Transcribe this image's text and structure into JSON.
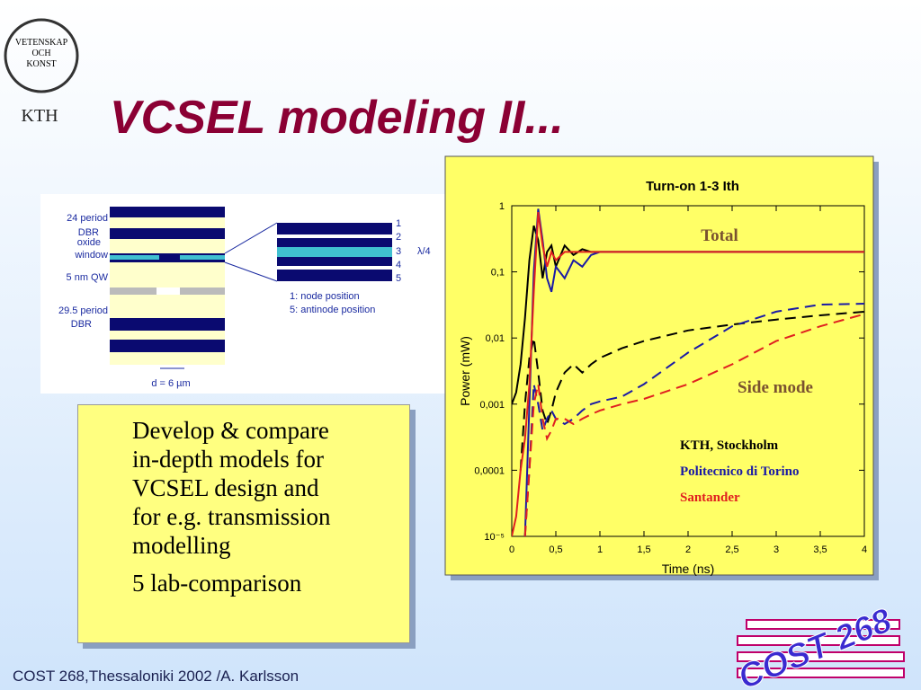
{
  "logo": {
    "motto": [
      "VETENSKAP",
      "OCH",
      "KONST"
    ],
    "name": "KTH"
  },
  "title": "VCSEL modeling II...",
  "diagram": {
    "labels": [
      "24 period",
      "DBR",
      "oxide",
      "window",
      "5 nm QW",
      "29.5 period",
      "DBR"
    ],
    "layers": [
      "1",
      "2",
      "3",
      "4",
      "5"
    ],
    "quarter": "λ/4",
    "notes": [
      "1: node position",
      "5: antinode position"
    ],
    "width": "d = 6 µm"
  },
  "textbox": {
    "lines": [
      "Develop & compare",
      "in-depth models for",
      "VCSEL design and",
      "for e.g. transmission",
      "modelling"
    ],
    "second": "5 lab-comparison"
  },
  "footer": "COST 268,Thessaloniki 2002  /A. Karlsson",
  "badge": "COST 268",
  "chart_data": {
    "type": "line",
    "title": "Turn-on 1-3 Ith",
    "y_label": "Power (mW)",
    "x_label": "Time (ns)",
    "yscale": "log",
    "annotations": [
      "Total",
      "Side mode"
    ],
    "x": [
      0,
      0.05,
      0.1,
      0.15,
      0.2,
      0.25,
      0.3,
      0.35,
      0.4,
      0.45,
      0.5,
      0.6,
      0.7,
      0.8,
      0.9,
      1.0,
      1.25,
      1.5,
      2,
      2.5,
      3,
      3.5,
      4
    ],
    "groups": [
      {
        "name": "KTH, Stockholm",
        "color": "#000000",
        "total": [
          0.001,
          0.0015,
          0.004,
          0.02,
          0.15,
          0.5,
          0.3,
          0.08,
          0.2,
          0.25,
          0.12,
          0.25,
          0.18,
          0.22,
          0.2,
          0.2,
          0.2,
          0.2,
          0.2,
          0.2,
          0.2,
          0.2,
          0.2
        ],
        "side": [
          null,
          null,
          0.0001,
          0.001,
          0.005,
          0.01,
          0.003,
          0.0008,
          0.0005,
          0.0008,
          0.0015,
          0.003,
          0.004,
          0.003,
          0.004,
          0.005,
          0.007,
          0.009,
          0.013,
          0.016,
          0.019,
          0.022,
          0.025
        ]
      },
      {
        "name": "Politecnico di Torino",
        "color": "#1a1aa6",
        "total": [
          null,
          null,
          null,
          1e-05,
          0.001,
          0.1,
          0.9,
          0.3,
          0.08,
          0.05,
          0.12,
          0.08,
          0.15,
          0.12,
          0.18,
          0.2,
          0.2,
          0.2,
          0.2,
          0.2,
          0.2,
          0.2,
          0.2
        ],
        "side": [
          null,
          null,
          null,
          1e-05,
          0.0001,
          0.002,
          0.001,
          0.0004,
          0.0006,
          0.0008,
          0.0006,
          0.0005,
          0.0006,
          0.0008,
          0.001,
          0.0011,
          0.0013,
          0.002,
          0.006,
          0.015,
          0.025,
          0.032,
          0.033
        ]
      },
      {
        "name": "Santander",
        "color": "#e02020",
        "total": [
          1e-05,
          2e-05,
          0.0001,
          0.0003,
          0.002,
          0.05,
          0.8,
          0.25,
          0.12,
          0.2,
          0.15,
          0.2,
          0.2,
          0.2,
          0.2,
          0.2,
          0.2,
          0.2,
          0.2,
          0.2,
          0.2,
          0.2,
          0.2
        ],
        "side": [
          null,
          null,
          null,
          1e-05,
          0.0001,
          0.001,
          0.002,
          0.0006,
          0.0003,
          0.0004,
          0.0006,
          0.0006,
          0.0005,
          0.0006,
          0.0007,
          0.0008,
          0.001,
          0.0012,
          0.002,
          0.004,
          0.009,
          0.015,
          0.023
        ]
      }
    ],
    "xlim": [
      0,
      4
    ],
    "ylim": [
      1e-05,
      1
    ],
    "xticks": [
      0,
      {
        "value": 0.5,
        "label": "0,5"
      },
      1,
      {
        "value": 1.5,
        "label": "1,5"
      },
      2,
      {
        "value": 2.5,
        "label": "2,5"
      },
      3,
      {
        "value": 3.5,
        "label": "3,5"
      },
      4
    ],
    "yticks": [
      {
        "value": 1e-05,
        "label": "10⁻⁵"
      },
      {
        "value": 0.0001,
        "label": "0,0001"
      },
      {
        "value": 0.001,
        "label": "0,001"
      },
      {
        "value": 0.01,
        "label": "0,01"
      },
      {
        "value": 0.1,
        "label": "0,1"
      },
      1
    ]
  }
}
